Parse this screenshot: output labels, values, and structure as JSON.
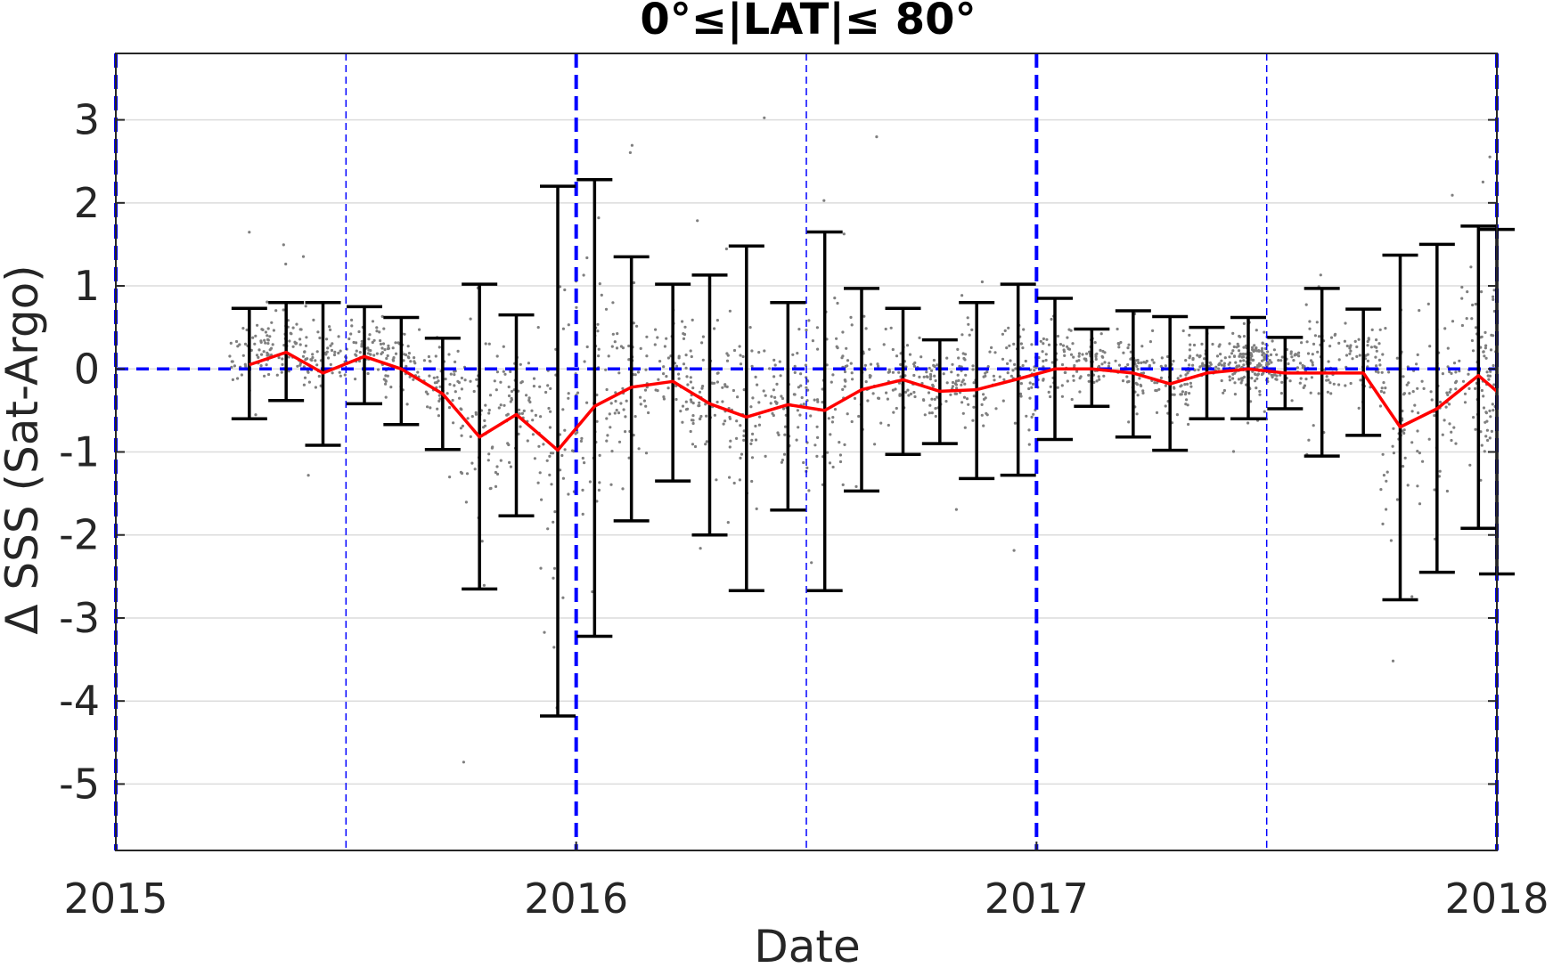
{
  "chart_data": {
    "type": "line",
    "title": "0°≤|LAT|≤ 80°",
    "xlabel": "Date",
    "ylabel": "Δ SSS (Sat-Argo)",
    "xlim": [
      2015.0,
      2018.0
    ],
    "ylim": [
      -5.8,
      3.8
    ],
    "x_ticks": [
      2015,
      2016,
      2017,
      2018
    ],
    "y_ticks": [
      -5,
      -4,
      -3,
      -2,
      -1,
      0,
      1,
      2,
      3
    ],
    "grid": "horizontal",
    "colors": {
      "mean_line": "#ff0000",
      "error_bars": "#000000",
      "scatter": "#7f7f7f",
      "reference_lines": "#0000ff",
      "grid": "#dcdcdc",
      "axes": "#262626"
    },
    "reference_lines": {
      "horizontal": 0,
      "year_boundaries": [
        2015.0,
        2016.0,
        2017.0,
        2018.0
      ],
      "mid_years": [
        2015.5,
        2016.5,
        2017.5
      ]
    },
    "series": [
      {
        "x": [
          2015.29,
          2015.37,
          2015.45,
          2015.54,
          2015.62,
          2015.71,
          2015.79,
          2015.87,
          2015.96,
          2016.04,
          2016.12,
          2016.21,
          2016.29,
          2016.37,
          2016.46,
          2016.54,
          2016.62,
          2016.71,
          2016.79,
          2016.87,
          2016.96,
          2017.04,
          2017.12,
          2017.21,
          2017.29,
          2017.37,
          2017.46,
          2017.54,
          2017.62,
          2017.71,
          2017.79,
          2017.87,
          2017.96,
          2018.0
        ],
        "mean": [
          0.05,
          0.2,
          -0.05,
          0.15,
          0.0,
          -0.3,
          -0.82,
          -0.55,
          -0.98,
          -0.45,
          -0.22,
          -0.15,
          -0.42,
          -0.58,
          -0.43,
          -0.5,
          -0.25,
          -0.13,
          -0.27,
          -0.25,
          -0.12,
          0.0,
          0.0,
          -0.05,
          -0.18,
          -0.05,
          0.0,
          -0.05,
          -0.05,
          -0.05,
          -0.7,
          -0.48,
          -0.08,
          -0.27
        ],
        "upper": [
          0.73,
          0.8,
          0.8,
          0.75,
          0.62,
          0.37,
          1.02,
          0.65,
          2.2,
          2.28,
          1.35,
          1.02,
          1.13,
          1.48,
          0.8,
          1.65,
          0.97,
          0.73,
          0.35,
          0.8,
          1.02,
          0.85,
          0.48,
          0.7,
          0.63,
          0.5,
          0.62,
          0.38,
          0.97,
          0.72,
          1.37,
          1.5,
          1.72,
          1.68
        ],
        "lower": [
          -0.6,
          -0.38,
          -0.92,
          -0.42,
          -0.67,
          -0.97,
          -2.65,
          -1.77,
          -4.18,
          -3.22,
          -1.83,
          -1.35,
          -2.0,
          -2.67,
          -1.7,
          -2.67,
          -1.47,
          -1.03,
          -0.9,
          -1.32,
          -1.28,
          -0.85,
          -0.45,
          -0.82,
          -0.98,
          -0.6,
          -0.6,
          -0.48,
          -1.05,
          -0.8,
          -2.78,
          -2.45,
          -1.92,
          -2.47
        ]
      }
    ]
  }
}
